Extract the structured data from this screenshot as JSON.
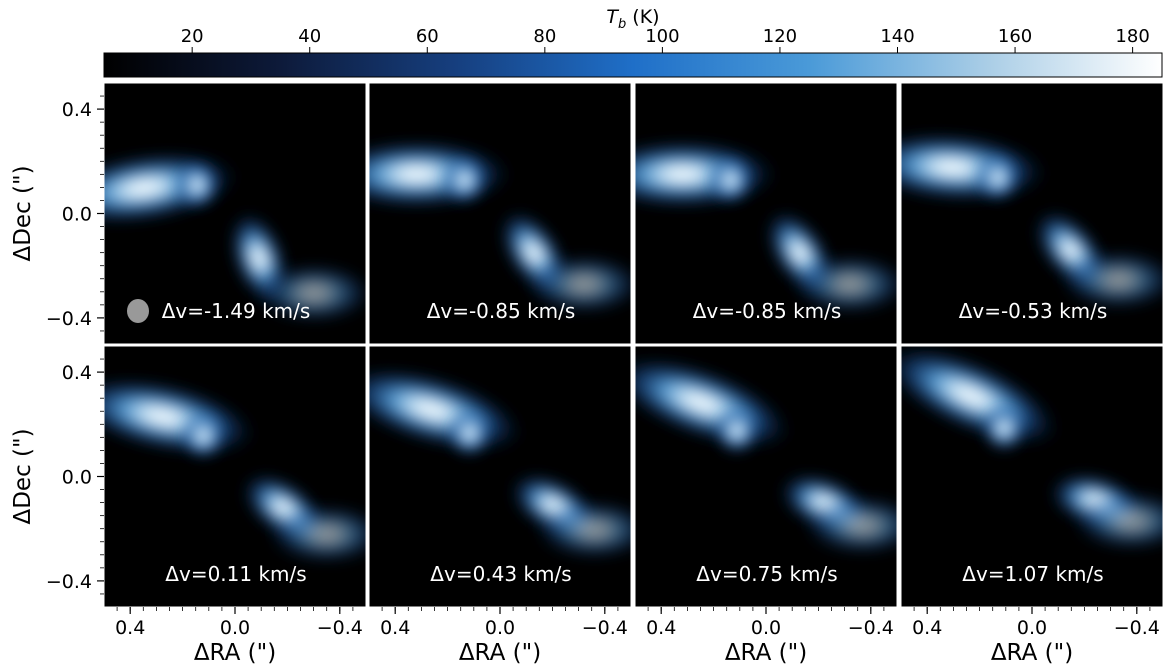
{
  "chart_data": {
    "type": "heatmap",
    "colorbar": {
      "label": "T_b (K)",
      "label_symbol": "T",
      "label_subscript": "b",
      "label_units": " (K)",
      "ticks": [
        20,
        40,
        60,
        80,
        100,
        120,
        140,
        160,
        180
      ],
      "range": [
        5,
        185
      ],
      "colormap": [
        "#000000",
        "#0d1a3a",
        "#163f7f",
        "#1f6fc8",
        "#4a9ad8",
        "#a9cde6",
        "#ffffff"
      ]
    },
    "xlabel": "ΔRA (\")",
    "ylabel": "ΔDec (\")",
    "xlim": [
      0.5,
      -0.5
    ],
    "ylim": [
      -0.5,
      0.5
    ],
    "xticks": [
      0.4,
      0.0,
      -0.4
    ],
    "xtick_labels": [
      "0.4",
      "0.0",
      "−0.4"
    ],
    "yticks": [
      0.4,
      0.0,
      -0.4
    ],
    "ytick_labels": [
      "0.4",
      "0.0",
      "−0.4"
    ],
    "grid": false,
    "panels": [
      {
        "label": "Δv=-1.49 km/s",
        "dv": -1.49
      },
      {
        "label": "Δv=-0.85 km/s",
        "dv": -0.85
      },
      {
        "label": "Δv=-0.85 km/s",
        "dv": -0.85
      },
      {
        "label": "Δv=-0.53 km/s",
        "dv": -0.53
      },
      {
        "label": "Δv=0.11 km/s",
        "dv": 0.11
      },
      {
        "label": "Δv=0.43 km/s",
        "dv": 0.43
      },
      {
        "label": "Δv=0.75 km/s",
        "dv": 0.75
      },
      {
        "label": "Δv=1.07 km/s",
        "dv": 1.07
      }
    ]
  }
}
